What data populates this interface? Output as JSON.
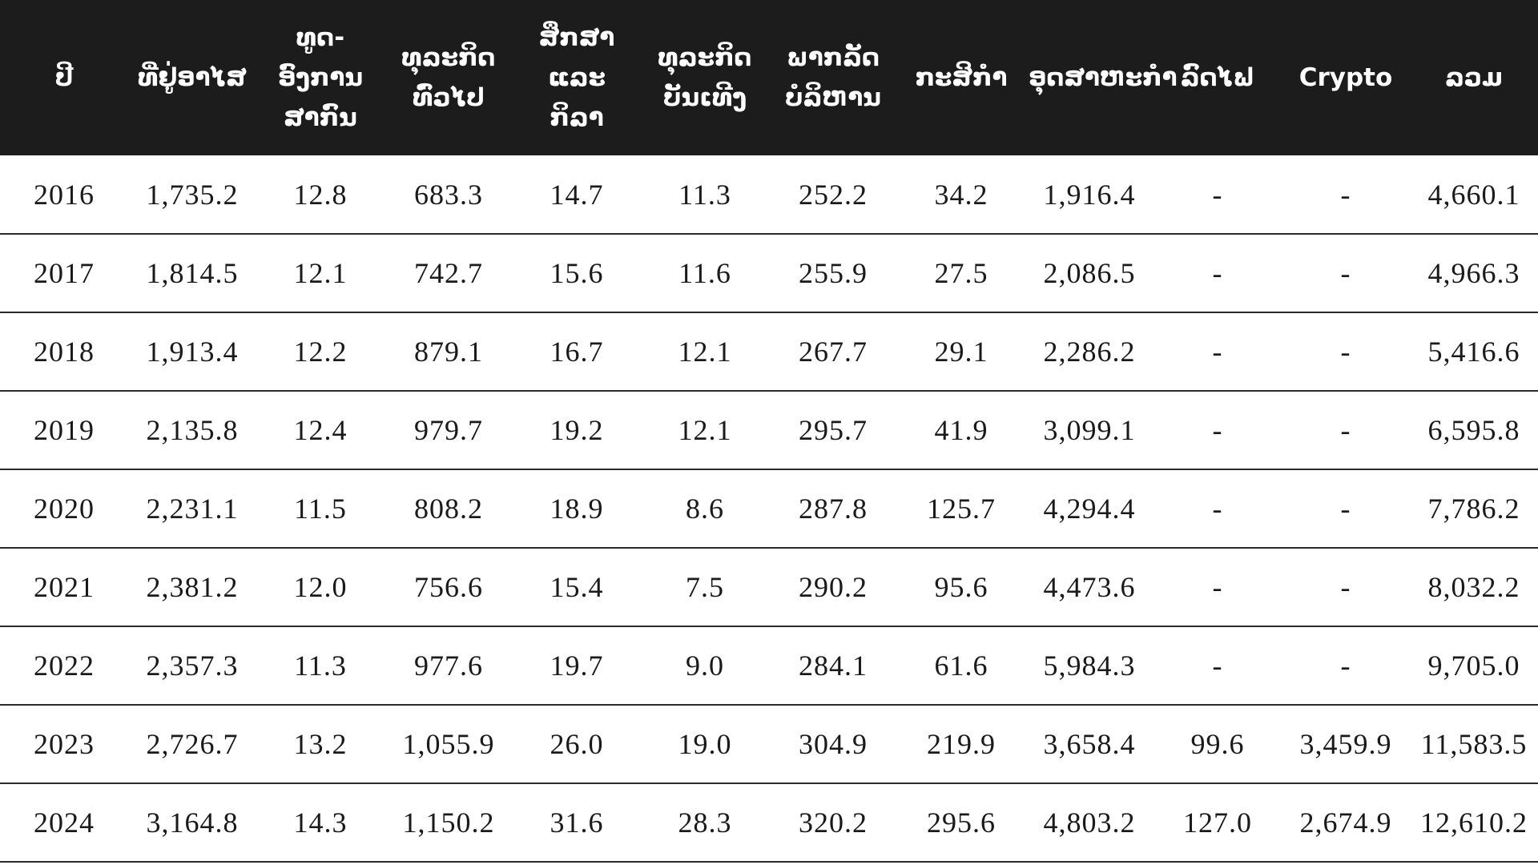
{
  "table": {
    "headers": [
      {
        "line1": "ປີ",
        "line2": ""
      },
      {
        "line1": "ທີ່ຢູ່ອາໄສ",
        "line2": ""
      },
      {
        "line1": "ທູດ-ອົງການ",
        "line2": "ສາກົນ"
      },
      {
        "line1": "ທຸລະກິດ",
        "line2": "ທົ່ວໄປ"
      },
      {
        "line1": "ສຶກສາ ແລະ",
        "line2": "ກິລາ"
      },
      {
        "line1": "ທຸລະກິດ",
        "line2": "ບັນເທີງ"
      },
      {
        "line1": "ພາກລັດ",
        "line2": "ບໍລິຫານ"
      },
      {
        "line1": "ກະສິກຳ",
        "line2": ""
      },
      {
        "line1": "ອຸດສາຫະກຳ",
        "line2": ""
      },
      {
        "line1": "ລົດໄຟ",
        "line2": ""
      },
      {
        "line1": "Crypto",
        "line2": ""
      },
      {
        "line1": "ລວມ",
        "line2": ""
      }
    ],
    "rows": [
      [
        "2016",
        "1,735.2",
        "12.8",
        "683.3",
        "14.7",
        "11.3",
        "252.2",
        "34.2",
        "1,916.4",
        "-",
        "-",
        "4,660.1"
      ],
      [
        "2017",
        "1,814.5",
        "12.1",
        "742.7",
        "15.6",
        "11.6",
        "255.9",
        "27.5",
        "2,086.5",
        "-",
        "-",
        "4,966.3"
      ],
      [
        "2018",
        "1,913.4",
        "12.2",
        "879.1",
        "16.7",
        "12.1",
        "267.7",
        "29.1",
        "2,286.2",
        "-",
        "-",
        "5,416.6"
      ],
      [
        "2019",
        "2,135.8",
        "12.4",
        "979.7",
        "19.2",
        "12.1",
        "295.7",
        "41.9",
        "3,099.1",
        "-",
        "-",
        "6,595.8"
      ],
      [
        "2020",
        "2,231.1",
        "11.5",
        "808.2",
        "18.9",
        "8.6",
        "287.8",
        "125.7",
        "4,294.4",
        "-",
        "-",
        "7,786.2"
      ],
      [
        "2021",
        "2,381.2",
        "12.0",
        "756.6",
        "15.4",
        "7.5",
        "290.2",
        "95.6",
        "4,473.6",
        "-",
        "-",
        "8,032.2"
      ],
      [
        "2022",
        "2,357.3",
        "11.3",
        "977.6",
        "19.7",
        "9.0",
        "284.1",
        "61.6",
        "5,984.3",
        "-",
        "-",
        "9,705.0"
      ],
      [
        "2023",
        "2,726.7",
        "13.2",
        "1,055.9",
        "26.0",
        "19.0",
        "304.9",
        "219.9",
        "3,658.4",
        "99.6",
        "3,459.9",
        "11,583.5"
      ],
      [
        "2024",
        "3,164.8",
        "14.3",
        "1,150.2",
        "31.6",
        "28.3",
        "320.2",
        "295.6",
        "4,803.2",
        "127.0",
        "2,674.9",
        "12,610.2"
      ]
    ]
  }
}
